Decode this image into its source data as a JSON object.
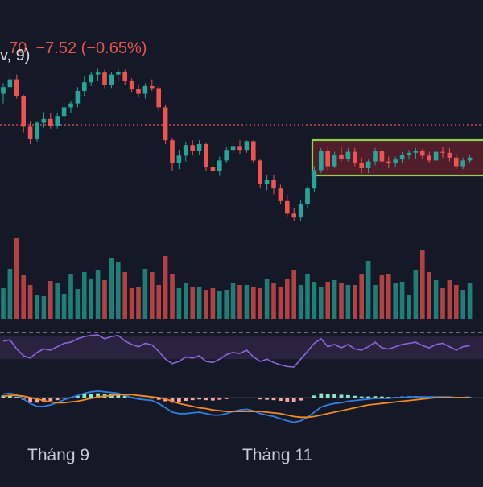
{
  "header": {
    "price_fragment": "70",
    "change": "−7.52",
    "change_pct": "(−0.65%)",
    "indicator_fragment": "v, 9)"
  },
  "colors": {
    "background": "#151826",
    "up": "#26a69a",
    "down": "#ef5350",
    "rsi": "#8a67d8",
    "rsi_band": "#2b2542",
    "macd": "#2f7fe0",
    "signal": "#f08a24",
    "zone_fill": "#5a1f2c",
    "zone_border": "#8fd14f",
    "price_line": "#e2564f"
  },
  "x_axis": {
    "labels": [
      "Tháng 9",
      "Tháng 11"
    ]
  },
  "chart_data": [
    {
      "type": "candlestick",
      "panel": "price",
      "candles": [
        [
          1,
          190,
          201,
          180,
          197
        ],
        [
          2,
          197,
          213,
          194,
          205
        ],
        [
          3,
          205,
          210,
          185,
          188
        ],
        [
          4,
          188,
          189,
          150,
          156
        ],
        [
          5,
          156,
          162,
          138,
          143
        ],
        [
          6,
          143,
          162,
          140,
          160
        ],
        [
          7,
          160,
          171,
          155,
          164
        ],
        [
          8,
          164,
          170,
          154,
          157
        ],
        [
          9,
          157,
          170,
          154,
          167
        ],
        [
          10,
          167,
          181,
          162,
          176
        ],
        [
          11,
          176,
          183,
          170,
          180
        ],
        [
          12,
          180,
          197,
          176,
          193
        ],
        [
          13,
          193,
          208,
          188,
          202
        ],
        [
          14,
          202,
          213,
          198,
          210
        ],
        [
          15,
          210,
          216,
          203,
          212
        ],
        [
          16,
          212,
          215,
          196,
          199
        ],
        [
          17,
          199,
          213,
          196,
          210
        ],
        [
          18,
          210,
          216,
          203,
          213
        ],
        [
          19,
          213,
          215,
          199,
          203
        ],
        [
          20,
          203,
          206,
          192,
          195
        ],
        [
          21,
          195,
          200,
          186,
          190
        ],
        [
          22,
          190,
          201,
          185,
          198
        ],
        [
          23,
          198,
          205,
          193,
          196
        ],
        [
          24,
          196,
          198,
          172,
          176
        ],
        [
          25,
          176,
          178,
          138,
          142
        ],
        [
          26,
          142,
          144,
          110,
          118
        ],
        [
          27,
          118,
          132,
          112,
          126
        ],
        [
          28,
          126,
          140,
          120,
          137
        ],
        [
          29,
          137,
          142,
          126,
          131
        ],
        [
          30,
          131,
          142,
          127,
          138
        ],
        [
          31,
          138,
          139,
          110,
          114
        ],
        [
          32,
          114,
          122,
          106,
          110
        ],
        [
          33,
          110,
          125,
          105,
          121
        ],
        [
          34,
          121,
          135,
          118,
          132
        ],
        [
          35,
          132,
          140,
          128,
          136
        ],
        [
          36,
          136,
          142,
          128,
          132
        ],
        [
          37,
          132,
          142,
          129,
          141
        ],
        [
          38,
          141,
          142,
          118,
          121
        ],
        [
          39,
          121,
          122,
          92,
          97
        ],
        [
          40,
          97,
          106,
          90,
          101
        ],
        [
          41,
          101,
          106,
          86,
          92
        ],
        [
          42,
          92,
          96,
          76,
          79
        ],
        [
          43,
          79,
          86,
          62,
          66
        ],
        [
          44,
          66,
          72,
          58,
          62
        ],
        [
          45,
          62,
          80,
          58,
          76
        ],
        [
          46,
          76,
          95,
          72,
          92
        ],
        [
          47,
          92,
          115,
          88,
          111
        ],
        [
          48,
          111,
          134,
          108,
          131
        ],
        [
          49,
          131,
          135,
          110,
          115
        ],
        [
          50,
          115,
          130,
          113,
          127
        ],
        [
          51,
          127,
          135,
          120,
          123
        ],
        [
          52,
          123,
          134,
          120,
          130
        ],
        [
          53,
          130,
          134,
          115,
          118
        ],
        [
          54,
          118,
          124,
          108,
          113
        ],
        [
          55,
          113,
          122,
          108,
          120
        ],
        [
          56,
          120,
          134,
          116,
          131
        ],
        [
          57,
          131,
          134,
          115,
          120
        ],
        [
          58,
          120,
          125,
          113,
          118
        ],
        [
          59,
          118,
          125,
          114,
          122
        ],
        [
          60,
          122,
          130,
          118,
          127
        ],
        [
          61,
          127,
          132,
          122,
          129
        ],
        [
          62,
          129,
          134,
          123,
          131
        ],
        [
          63,
          131,
          133,
          123,
          126
        ],
        [
          64,
          126,
          130,
          118,
          121
        ],
        [
          65,
          121,
          132,
          119,
          130
        ],
        [
          66,
          130,
          135,
          124,
          129
        ],
        [
          67,
          129,
          134,
          120,
          124
        ],
        [
          68,
          124,
          128,
          112,
          115
        ],
        [
          69,
          115,
          124,
          112,
          121
        ],
        [
          70,
          121,
          127,
          118,
          124
        ]
      ],
      "annotations": [
        "price-line",
        "range-box"
      ]
    },
    {
      "type": "bar",
      "panel": "volume",
      "values": [
        38,
        62,
        100,
        54,
        42,
        30,
        28,
        47,
        45,
        31,
        55,
        37,
        58,
        50,
        60,
        48,
        76,
        70,
        58,
        38,
        40,
        62,
        58,
        42,
        78,
        56,
        38,
        44,
        40,
        40,
        36,
        38,
        34,
        36,
        44,
        42,
        42,
        40,
        38,
        50,
        44,
        40,
        50,
        60,
        42,
        56,
        46,
        40,
        46,
        48,
        44,
        42,
        42,
        56,
        72,
        42,
        54,
        56,
        44,
        46,
        30,
        60,
        86,
        58,
        48,
        38,
        48,
        42,
        36,
        44
      ]
    },
    {
      "type": "line",
      "panel": "rsi",
      "values": [
        62,
        64,
        48,
        36,
        32,
        42,
        48,
        46,
        52,
        58,
        60,
        66,
        70,
        72,
        73,
        66,
        70,
        72,
        62,
        56,
        52,
        58,
        55,
        44,
        30,
        22,
        26,
        34,
        32,
        36,
        26,
        24,
        30,
        38,
        42,
        40,
        46,
        34,
        26,
        30,
        24,
        20,
        17,
        16,
        30,
        44,
        58,
        66,
        52,
        56,
        50,
        56,
        48,
        46,
        52,
        60,
        50,
        48,
        52,
        56,
        58,
        60,
        54,
        50,
        56,
        58,
        52,
        46,
        52,
        54
      ],
      "bands": [
        30,
        70
      ]
    },
    {
      "type": "bar",
      "panel": "macd-histogram",
      "values": [
        0.6,
        0.5,
        0.2,
        -0.6,
        -1.2,
        -1.4,
        -1.1,
        -0.9,
        -0.7,
        -0.3,
        0.1,
        0.5,
        0.9,
        1.1,
        1.2,
        1.0,
        0.9,
        0.8,
        0.5,
        0.2,
        -0.1,
        -0.2,
        -0.3,
        -0.6,
        -1.0,
        -1.4,
        -1.2,
        -0.9,
        -0.7,
        -0.5,
        -0.7,
        -0.8,
        -0.6,
        -0.4,
        -0.2,
        -0.1,
        0.0,
        -0.2,
        -0.5,
        -0.6,
        -0.7,
        -0.9,
        -1.1,
        -1.2,
        -0.8,
        -0.2,
        0.6,
        1.2,
        1.1,
        1.0,
        0.8,
        0.7,
        0.5,
        0.3,
        0.3,
        0.4,
        0.3,
        0.2,
        0.2,
        0.3,
        0.4,
        0.4,
        0.3,
        0.2,
        0.2,
        0.2,
        0.1,
        -0.1,
        0.0,
        0.1
      ]
    },
    {
      "type": "line",
      "panel": "macd",
      "series": [
        {
          "key": "macd",
          "values": [
            5,
            6,
            4,
            -2,
            -8,
            -12,
            -12,
            -10,
            -7,
            -3,
            0,
            3,
            6,
            8,
            9,
            8,
            7,
            6,
            3,
            0,
            -2,
            -3,
            -4,
            -8,
            -14,
            -20,
            -22,
            -22,
            -21,
            -20,
            -22,
            -24,
            -24,
            -22,
            -19,
            -17,
            -16,
            -18,
            -22,
            -24,
            -26,
            -29,
            -32,
            -34,
            -32,
            -27,
            -20,
            -13,
            -10,
            -8,
            -7,
            -5,
            -4,
            -3,
            -2,
            -1,
            -1,
            -1,
            0,
            0,
            1,
            1,
            1,
            1,
            1,
            1,
            1,
            0,
            0,
            1
          ]
        },
        {
          "key": "signal",
          "values": [
            2,
            3,
            3,
            2,
            0,
            -2,
            -4,
            -6,
            -7,
            -7,
            -6,
            -5,
            -3,
            -1,
            1,
            2,
            3,
            4,
            4,
            4,
            3,
            2,
            1,
            0,
            -2,
            -5,
            -8,
            -10,
            -12,
            -14,
            -15,
            -17,
            -18,
            -19,
            -19,
            -19,
            -19,
            -19,
            -19,
            -20,
            -21,
            -22,
            -24,
            -26,
            -27,
            -27,
            -26,
            -24,
            -22,
            -20,
            -18,
            -16,
            -14,
            -12,
            -10,
            -9,
            -8,
            -7,
            -6,
            -5,
            -4,
            -3,
            -2,
            -1,
            0,
            0,
            0,
            0,
            0,
            0
          ]
        }
      ]
    }
  ]
}
